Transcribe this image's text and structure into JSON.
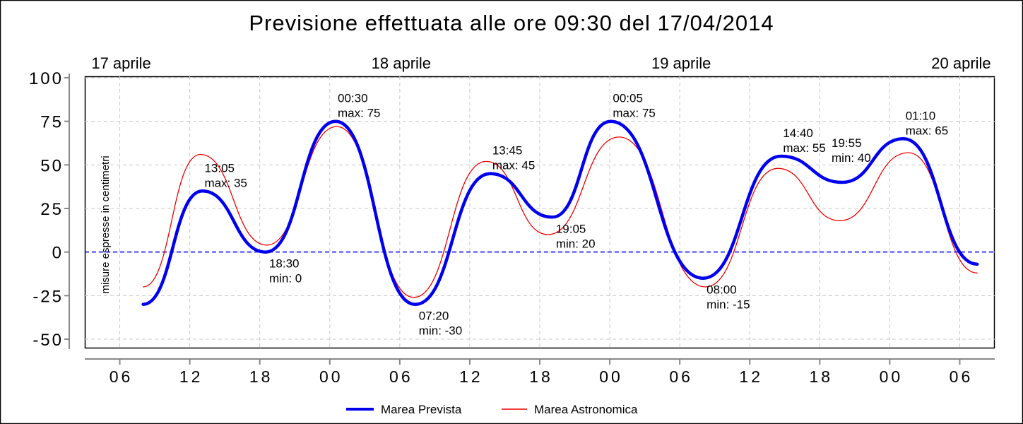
{
  "chart_data": {
    "type": "line",
    "title": "Previsione effettuata alle ore 09:30 del 17/04/2014",
    "ylabel": "misure espresse in centimetri",
    "ylim": [
      -50,
      100
    ],
    "yticks": [
      100,
      75,
      50,
      25,
      0,
      -25,
      -50
    ],
    "x_unit": "hours from 17/04/2014 00:00",
    "xlim": [
      3,
      81
    ],
    "xticks": [
      {
        "x": 6,
        "label": "06"
      },
      {
        "x": 12,
        "label": "12"
      },
      {
        "x": 18,
        "label": "18"
      },
      {
        "x": 24,
        "label": "00"
      },
      {
        "x": 30,
        "label": "06"
      },
      {
        "x": 36,
        "label": "12"
      },
      {
        "x": 42,
        "label": "18"
      },
      {
        "x": 48,
        "label": "00"
      },
      {
        "x": 54,
        "label": "06"
      },
      {
        "x": 60,
        "label": "12"
      },
      {
        "x": 66,
        "label": "18"
      },
      {
        "x": 72,
        "label": "00"
      },
      {
        "x": 78,
        "label": "06"
      }
    ],
    "day_labels": [
      {
        "x": 6,
        "label": "17 aprile"
      },
      {
        "x": 30,
        "label": "18 aprile"
      },
      {
        "x": 54,
        "label": "19 aprile"
      },
      {
        "x": 78,
        "label": "20 aprile"
      }
    ],
    "reference_line": {
      "y": 0,
      "color": "#0000ee"
    },
    "grid": true,
    "legend_position": "bottom",
    "series": [
      {
        "name": "Marea Prevista",
        "color": "#0000ee",
        "points": [
          [
            8,
            -30
          ],
          [
            13.08,
            35
          ],
          [
            18.5,
            0
          ],
          [
            24.5,
            75
          ],
          [
            31.33,
            -30
          ],
          [
            37.75,
            45
          ],
          [
            43.08,
            20
          ],
          [
            48.08,
            75
          ],
          [
            56.0,
            -15
          ],
          [
            62.67,
            55
          ],
          [
            67.92,
            40
          ],
          [
            73.17,
            65
          ],
          [
            79.5,
            -7
          ]
        ]
      },
      {
        "name": "Marea Astronomica",
        "color": "#ee0000",
        "points": [
          [
            8,
            -20
          ],
          [
            12.9,
            56
          ],
          [
            18.6,
            4
          ],
          [
            24.6,
            72
          ],
          [
            31.2,
            -26
          ],
          [
            37.4,
            52
          ],
          [
            42.7,
            10
          ],
          [
            48.8,
            66
          ],
          [
            56.2,
            -20
          ],
          [
            62.4,
            48
          ],
          [
            67.7,
            18
          ],
          [
            73.6,
            57
          ],
          [
            79.5,
            -12
          ]
        ]
      }
    ],
    "annotations": [
      {
        "x": 13.08,
        "y": 35,
        "time": "13:05",
        "label": "max: 35"
      },
      {
        "x": 18.5,
        "y": 0,
        "time": "18:30",
        "label": "min: 0"
      },
      {
        "x": 24.5,
        "y": 75,
        "time": "00:30",
        "label": "max: 75"
      },
      {
        "x": 31.33,
        "y": -30,
        "time": "07:20",
        "label": "min: -30"
      },
      {
        "x": 37.75,
        "y": 45,
        "time": "13:45",
        "label": "max: 45"
      },
      {
        "x": 43.08,
        "y": 20,
        "time": "19:05",
        "label": "min: 20"
      },
      {
        "x": 48.08,
        "y": 75,
        "time": "00:05",
        "label": "max: 75"
      },
      {
        "x": 56.0,
        "y": -15,
        "time": "08:00",
        "label": "min: -15"
      },
      {
        "x": 62.67,
        "y": 55,
        "time": "14:40",
        "label": "max: 55"
      },
      {
        "x": 67.92,
        "y": 40,
        "time": "19:55",
        "label": "min: 40"
      },
      {
        "x": 73.17,
        "y": 65,
        "time": "01:10",
        "label": "max: 65"
      }
    ]
  }
}
